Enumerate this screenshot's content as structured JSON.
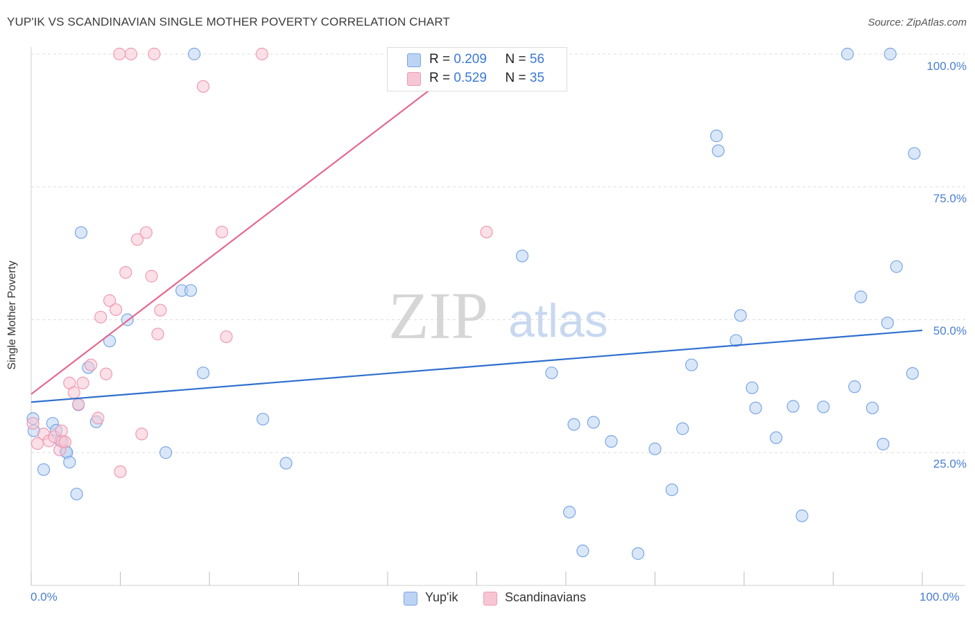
{
  "title": "YUP'IK VS SCANDINAVIAN SINGLE MOTHER POVERTY CORRELATION CHART",
  "source": "Source: ZipAtlas.com",
  "watermark": {
    "zip": "ZIP",
    "atlas": "atlas"
  },
  "legend": {
    "rows": [
      {
        "r_label": "R =",
        "r_value": "0.209",
        "n_label": "N =",
        "n_value": "56"
      },
      {
        "r_label": "R =",
        "r_value": "0.529",
        "n_label": "N =",
        "n_value": "35"
      }
    ]
  },
  "bottom_legend": [
    "Yup'ik",
    "Scandinavians"
  ],
  "colors": {
    "blue_fill": "#bcd3f3",
    "blue_stroke": "#7aa6e6",
    "blue_line": "#2e6fcf",
    "pink_fill": "#f7c6d4",
    "pink_stroke": "#ee9ab2",
    "pink_line": "#e4678e",
    "tick_text": "#4a7fd1",
    "grid": "#dddddd"
  },
  "chart_data": {
    "type": "scatter",
    "title": "YUP'IK VS SCANDINAVIAN SINGLE MOTHER POVERTY CORRELATION CHART",
    "xlabel": "",
    "ylabel": "Single Mother Poverty",
    "xlim": [
      0,
      100
    ],
    "ylim": [
      0,
      103
    ],
    "x_tick_labels": [
      "0.0%",
      "100.0%"
    ],
    "y_tick_labels": [
      "25.0%",
      "50.0%",
      "75.0%",
      "100.0%"
    ],
    "y_ticks": [
      25,
      50,
      75,
      100
    ],
    "grid": true,
    "legend_position": "top-center",
    "series": [
      {
        "name": "Yup'ik",
        "r": 0.209,
        "n": 56,
        "trend": {
          "x": [
            0,
            100
          ],
          "y": [
            34.5,
            48
          ]
        },
        "points": [
          [
            0.2,
            31.4
          ],
          [
            0.3,
            29.1
          ],
          [
            1.4,
            21.8
          ],
          [
            2.4,
            30.5
          ],
          [
            2.8,
            29.2
          ],
          [
            3.3,
            27.2
          ],
          [
            3.9,
            25.2
          ],
          [
            4.0,
            25.0
          ],
          [
            4.3,
            23.2
          ],
          [
            5.1,
            17.2
          ],
          [
            5.3,
            34.0
          ],
          [
            5.6,
            66.4
          ],
          [
            6.4,
            41.0
          ],
          [
            7.3,
            30.8
          ],
          [
            8.8,
            46.0
          ],
          [
            10.8,
            50.0
          ],
          [
            15.1,
            25.0
          ],
          [
            16.9,
            55.5
          ],
          [
            17.9,
            55.5
          ],
          [
            18.3,
            100
          ],
          [
            19.3,
            40.0
          ],
          [
            26.0,
            31.3
          ],
          [
            28.6,
            23.0
          ],
          [
            58.4,
            100
          ],
          [
            55.1,
            62.0
          ],
          [
            58.4,
            40.0
          ],
          [
            60.4,
            13.8
          ],
          [
            60.9,
            30.3
          ],
          [
            61.9,
            6.5
          ],
          [
            63.1,
            30.7
          ],
          [
            65.1,
            27.1
          ],
          [
            68.1,
            6.0
          ],
          [
            70.0,
            25.7
          ],
          [
            71.9,
            18.0
          ],
          [
            73.1,
            29.5
          ],
          [
            74.1,
            41.5
          ],
          [
            76.9,
            84.6
          ],
          [
            77.1,
            81.8
          ],
          [
            79.1,
            46.1
          ],
          [
            79.6,
            50.8
          ],
          [
            80.9,
            37.2
          ],
          [
            81.3,
            33.4
          ],
          [
            83.6,
            27.8
          ],
          [
            85.5,
            33.7
          ],
          [
            86.5,
            13.1
          ],
          [
            88.9,
            33.6
          ],
          [
            91.6,
            100
          ],
          [
            92.4,
            37.4
          ],
          [
            93.1,
            54.3
          ],
          [
            94.4,
            33.4
          ],
          [
            95.6,
            26.6
          ],
          [
            96.1,
            49.4
          ],
          [
            96.4,
            100
          ],
          [
            97.1,
            60.0
          ],
          [
            98.9,
            39.9
          ],
          [
            99.1,
            81.3
          ]
        ]
      },
      {
        "name": "Scandinavians",
        "r": 0.529,
        "n": 35,
        "trend": {
          "x": [
            0,
            50
          ],
          "y": [
            36,
            100
          ]
        },
        "points": [
          [
            0.2,
            30.5
          ],
          [
            0.7,
            26.7
          ],
          [
            1.4,
            28.5
          ],
          [
            2.0,
            27.2
          ],
          [
            2.6,
            28.0
          ],
          [
            3.2,
            25.5
          ],
          [
            3.5,
            27.1
          ],
          [
            3.4,
            29.1
          ],
          [
            3.8,
            27.0
          ],
          [
            4.3,
            38.1
          ],
          [
            4.8,
            36.3
          ],
          [
            5.3,
            34.1
          ],
          [
            5.8,
            38.1
          ],
          [
            6.7,
            41.5
          ],
          [
            7.5,
            31.5
          ],
          [
            7.8,
            50.5
          ],
          [
            8.4,
            39.8
          ],
          [
            8.8,
            53.6
          ],
          [
            9.5,
            51.9
          ],
          [
            10.0,
            21.4
          ],
          [
            10.6,
            58.9
          ],
          [
            11.9,
            65.1
          ],
          [
            12.4,
            28.5
          ],
          [
            12.9,
            66.4
          ],
          [
            13.5,
            58.2
          ],
          [
            14.2,
            47.3
          ],
          [
            14.5,
            51.8
          ],
          [
            9.9,
            100
          ],
          [
            11.2,
            100
          ],
          [
            13.8,
            100
          ],
          [
            19.3,
            93.9
          ],
          [
            21.4,
            66.5
          ],
          [
            21.9,
            46.8
          ],
          [
            25.9,
            100
          ],
          [
            51.1,
            66.5
          ]
        ]
      }
    ]
  }
}
